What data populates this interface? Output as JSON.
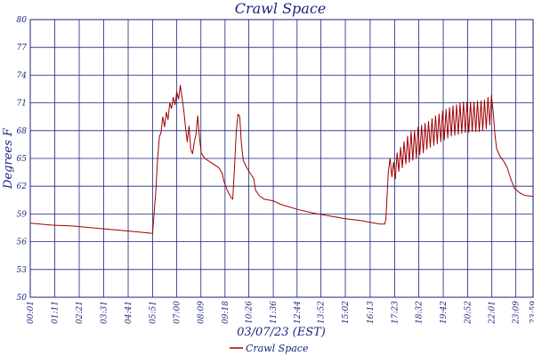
{
  "chart_data": {
    "type": "line",
    "title": "Crawl Space",
    "xlabel": "03/07/23 (EST)",
    "ylabel": "Degrees F",
    "y_ticks": [
      "50",
      "53",
      "56",
      "59",
      "62",
      "65",
      "68",
      "71",
      "74",
      "77",
      "80"
    ],
    "x_ticks": [
      "00:01",
      "01:11",
      "02:21",
      "03:31",
      "04:41",
      "05:51",
      "07:00",
      "08:09",
      "09:18",
      "10:26",
      "11:36",
      "12:44",
      "13:52",
      "15:02",
      "16:13",
      "17:23",
      "18:32",
      "19:42",
      "20:52",
      "22:01",
      "23:09",
      "23:59"
    ],
    "xlim": [
      "00:01",
      "23:59"
    ],
    "ylim": [
      50,
      80
    ],
    "grid": true,
    "legend": "bottom-center",
    "colors": {
      "series": "#a00000",
      "grid": "#1a237e",
      "text": "#1a237e"
    },
    "series": [
      {
        "name": "Crawl Space",
        "points": [
          [
            "00:01",
            58.0
          ],
          [
            "01:00",
            57.8
          ],
          [
            "02:00",
            57.7
          ],
          [
            "03:00",
            57.5
          ],
          [
            "04:00",
            57.3
          ],
          [
            "05:00",
            57.1
          ],
          [
            "05:51",
            56.9
          ],
          [
            "05:52",
            57.5
          ],
          [
            "06:00",
            61.5
          ],
          [
            "06:05",
            64.8
          ],
          [
            "06:10",
            67.3
          ],
          [
            "06:15",
            67.8
          ],
          [
            "06:20",
            69.5
          ],
          [
            "06:25",
            68.4
          ],
          [
            "06:30",
            70.0
          ],
          [
            "06:35",
            69.2
          ],
          [
            "06:40",
            71.0
          ],
          [
            "06:45",
            70.4
          ],
          [
            "06:50",
            71.6
          ],
          [
            "06:55",
            70.8
          ],
          [
            "07:00",
            72.2
          ],
          [
            "07:05",
            71.4
          ],
          [
            "07:10",
            72.9
          ],
          [
            "07:15",
            71.6
          ],
          [
            "07:20",
            70.2
          ],
          [
            "07:25",
            68.3
          ],
          [
            "07:30",
            66.8
          ],
          [
            "07:35",
            68.5
          ],
          [
            "07:40",
            66.0
          ],
          [
            "07:45",
            65.5
          ],
          [
            "07:50",
            66.8
          ],
          [
            "07:55",
            67.6
          ],
          [
            "08:00",
            69.6
          ],
          [
            "08:05",
            67.2
          ],
          [
            "08:10",
            65.6
          ],
          [
            "08:20",
            65.0
          ],
          [
            "08:40",
            64.5
          ],
          [
            "09:00",
            64.0
          ],
          [
            "09:10",
            63.4
          ],
          [
            "09:15",
            62.5
          ],
          [
            "09:25",
            61.5
          ],
          [
            "09:35",
            60.8
          ],
          [
            "09:40",
            60.6
          ],
          [
            "09:45",
            64.0
          ],
          [
            "09:50",
            67.8
          ],
          [
            "09:55",
            69.8
          ],
          [
            "10:00",
            69.5
          ],
          [
            "10:05",
            66.5
          ],
          [
            "10:10",
            64.8
          ],
          [
            "10:20",
            64.0
          ],
          [
            "10:30",
            63.4
          ],
          [
            "10:40",
            62.8
          ],
          [
            "10:45",
            61.6
          ],
          [
            "10:55",
            61.0
          ],
          [
            "11:10",
            60.6
          ],
          [
            "11:36",
            60.4
          ],
          [
            "12:00",
            60.0
          ],
          [
            "12:44",
            59.5
          ],
          [
            "13:30",
            59.1
          ],
          [
            "14:15",
            58.8
          ],
          [
            "15:00",
            58.5
          ],
          [
            "15:45",
            58.3
          ],
          [
            "16:13",
            58.1
          ],
          [
            "16:40",
            57.9
          ],
          [
            "16:55",
            57.9
          ],
          [
            "16:58",
            58.5
          ],
          [
            "17:05",
            63.5
          ],
          [
            "17:10",
            65.0
          ],
          [
            "17:15",
            63.0
          ],
          [
            "17:20",
            64.6
          ],
          [
            "17:25",
            62.8
          ],
          [
            "17:30",
            65.6
          ],
          [
            "17:35",
            63.6
          ],
          [
            "17:40",
            66.2
          ],
          [
            "17:45",
            64.0
          ],
          [
            "17:50",
            66.8
          ],
          [
            "17:55",
            64.4
          ],
          [
            "18:00",
            67.4
          ],
          [
            "18:05",
            64.6
          ],
          [
            "18:10",
            67.9
          ],
          [
            "18:15",
            64.8
          ],
          [
            "18:20",
            68.0
          ],
          [
            "18:25",
            65.0
          ],
          [
            "18:30",
            68.4
          ],
          [
            "18:35",
            65.4
          ],
          [
            "18:40",
            68.6
          ],
          [
            "18:45",
            65.6
          ],
          [
            "18:50",
            68.8
          ],
          [
            "18:55",
            66.0
          ],
          [
            "19:00",
            69.0
          ],
          [
            "19:05",
            66.2
          ],
          [
            "19:10",
            69.3
          ],
          [
            "19:15",
            66.4
          ],
          [
            "19:20",
            69.6
          ],
          [
            "19:25",
            66.6
          ],
          [
            "19:30",
            69.8
          ],
          [
            "19:35",
            66.8
          ],
          [
            "19:40",
            70.1
          ],
          [
            "19:45",
            67.0
          ],
          [
            "19:50",
            70.3
          ],
          [
            "19:55",
            67.2
          ],
          [
            "20:00",
            70.5
          ],
          [
            "20:05",
            67.4
          ],
          [
            "20:10",
            70.7
          ],
          [
            "20:15",
            67.5
          ],
          [
            "20:20",
            70.8
          ],
          [
            "20:25",
            67.6
          ],
          [
            "20:30",
            71.0
          ],
          [
            "20:35",
            67.7
          ],
          [
            "20:40",
            71.1
          ],
          [
            "20:45",
            67.8
          ],
          [
            "20:50",
            71.1
          ],
          [
            "20:55",
            67.8
          ],
          [
            "21:00",
            71.1
          ],
          [
            "21:05",
            67.9
          ],
          [
            "21:10",
            71.1
          ],
          [
            "21:15",
            67.9
          ],
          [
            "21:20",
            71.2
          ],
          [
            "21:25",
            67.9
          ],
          [
            "21:30",
            71.2
          ],
          [
            "21:35",
            68.0
          ],
          [
            "21:40",
            71.3
          ],
          [
            "21:45",
            68.2
          ],
          [
            "21:50",
            71.6
          ],
          [
            "21:55",
            68.6
          ],
          [
            "22:00",
            71.8
          ],
          [
            "22:05",
            70.0
          ],
          [
            "22:10",
            67.5
          ],
          [
            "22:15",
            66.0
          ],
          [
            "22:25",
            65.2
          ],
          [
            "22:35",
            64.7
          ],
          [
            "22:45",
            64.0
          ],
          [
            "22:55",
            62.8
          ],
          [
            "23:05",
            61.8
          ],
          [
            "23:20",
            61.3
          ],
          [
            "23:35",
            61.0
          ],
          [
            "23:59",
            60.9
          ]
        ]
      }
    ]
  }
}
